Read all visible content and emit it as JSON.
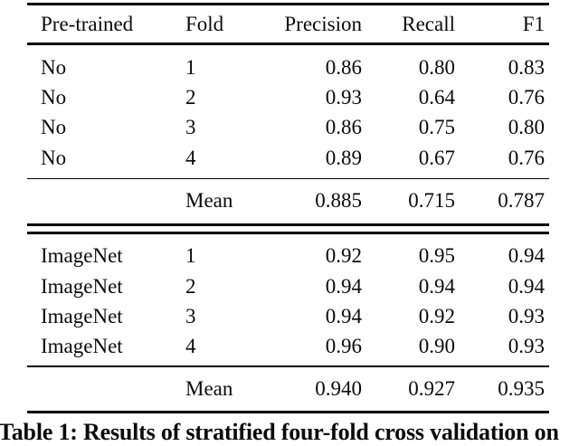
{
  "table": {
    "header": [
      "Pre-trained",
      "Fold",
      "Precision",
      "Recall",
      "F1"
    ],
    "sections": [
      {
        "rows": [
          [
            "No",
            "1",
            "0.86",
            "0.80",
            "0.83"
          ],
          [
            "No",
            "2",
            "0.93",
            "0.64",
            "0.76"
          ],
          [
            "No",
            "3",
            "0.86",
            "0.75",
            "0.80"
          ],
          [
            "No",
            "4",
            "0.89",
            "0.67",
            "0.76"
          ]
        ],
        "mean": [
          "Mean",
          "0.885",
          "0.715",
          "0.787"
        ]
      },
      {
        "rows": [
          [
            "ImageNet",
            "1",
            "0.92",
            "0.95",
            "0.94"
          ],
          [
            "ImageNet",
            "2",
            "0.94",
            "0.94",
            "0.94"
          ],
          [
            "ImageNet",
            "3",
            "0.94",
            "0.92",
            "0.93"
          ],
          [
            "ImageNet",
            "4",
            "0.96",
            "0.90",
            "0.93"
          ]
        ],
        "mean": [
          "Mean",
          "0.940",
          "0.927",
          "0.935"
        ]
      }
    ]
  },
  "caption": "Table 1: Results of stratified four-fold cross validation on",
  "chart_data": {
    "type": "table",
    "title": "Table 1: Results of stratified four-fold cross validation",
    "columns": [
      "Pre-trained",
      "Fold",
      "Precision",
      "Recall",
      "F1"
    ],
    "rows": [
      [
        "No",
        "1",
        0.86,
        0.8,
        0.83
      ],
      [
        "No",
        "2",
        0.93,
        0.64,
        0.76
      ],
      [
        "No",
        "3",
        0.86,
        0.75,
        0.8
      ],
      [
        "No",
        "4",
        0.89,
        0.67,
        0.76
      ],
      [
        "No",
        "Mean",
        0.885,
        0.715,
        0.787
      ],
      [
        "ImageNet",
        "1",
        0.92,
        0.95,
        0.94
      ],
      [
        "ImageNet",
        "2",
        0.94,
        0.94,
        0.94
      ],
      [
        "ImageNet",
        "3",
        0.94,
        0.92,
        0.93
      ],
      [
        "ImageNet",
        "4",
        0.96,
        0.9,
        0.93
      ],
      [
        "ImageNet",
        "Mean",
        0.94,
        0.927,
        0.935
      ]
    ]
  }
}
